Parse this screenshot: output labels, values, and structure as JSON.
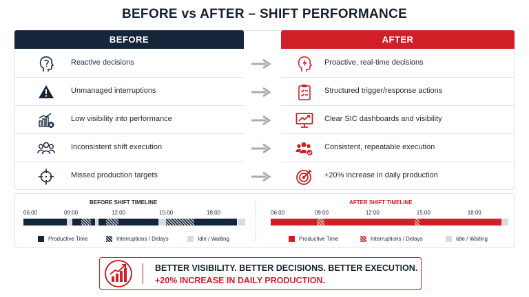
{
  "title": "BEFORE vs AFTER – SHIFT PERFORMANCE",
  "colors": {
    "navy": "#16263a",
    "red": "#d11f27",
    "idle": "#d9dbde",
    "arrow": "#a9adb3"
  },
  "columns": {
    "before": "BEFORE",
    "after": "AFTER"
  },
  "rows": [
    {
      "before_icon": "head-question-icon",
      "before": "Reactive decisions",
      "after_icon": "head-lightning-icon",
      "after": "Proactive, real-time decisions"
    },
    {
      "before_icon": "warning-triangle-icon",
      "before": "Unmanaged interruptions",
      "after_icon": "clipboard-checklist-icon",
      "after": "Structured trigger/response actions"
    },
    {
      "before_icon": "bar-chart-x-icon",
      "before": "Low visibility into performance",
      "after_icon": "monitor-chart-icon",
      "after": "Clear SIC dashboards and visibility"
    },
    {
      "before_icon": "team-outline-icon",
      "before": "Inconsistent shift execution",
      "after_icon": "team-check-icon",
      "after": "Consistent, repeatable execution"
    },
    {
      "before_icon": "crosshair-icon",
      "before": "Missed production targets",
      "after_icon": "target-arrow-icon",
      "after": "+20% increase in daily production"
    }
  ],
  "timelines": {
    "before": {
      "title": "BEFORE SHIFT TIMELINE",
      "ticks": [
        "06:00",
        "09:00",
        "12:00",
        "15:00",
        "18:00"
      ],
      "segments": [
        {
          "state": "productive",
          "start": 6.0,
          "end": 8.75
        },
        {
          "state": "idle",
          "start": 8.75,
          "end": 9.1
        },
        {
          "state": "productive",
          "start": 9.1,
          "end": 9.65
        },
        {
          "state": "interruption",
          "start": 9.65,
          "end": 10.25
        },
        {
          "state": "productive",
          "start": 10.25,
          "end": 10.5
        },
        {
          "state": "idle",
          "start": 10.5,
          "end": 10.75
        },
        {
          "state": "productive",
          "start": 10.75,
          "end": 11.2
        },
        {
          "state": "interruption",
          "start": 11.2,
          "end": 12.0
        },
        {
          "state": "productive",
          "start": 12.0,
          "end": 14.5
        },
        {
          "state": "idle",
          "start": 14.5,
          "end": 15.0
        },
        {
          "state": "interruption",
          "start": 15.0,
          "end": 16.8
        },
        {
          "state": "productive",
          "start": 16.8,
          "end": 19.5
        },
        {
          "state": "idle",
          "start": 19.5,
          "end": 20.0
        }
      ]
    },
    "after": {
      "title": "AFTER SHIFT TIMELINE",
      "ticks": [
        "06:00",
        "09:00",
        "12:00",
        "15:00",
        "18:00"
      ],
      "segments": [
        {
          "state": "productive",
          "start": 6.0,
          "end": 8.7
        },
        {
          "state": "interruption",
          "start": 8.7,
          "end": 9.15
        },
        {
          "state": "productive",
          "start": 9.15,
          "end": 14.5
        },
        {
          "state": "interruption",
          "start": 14.5,
          "end": 14.75
        },
        {
          "state": "productive",
          "start": 14.75,
          "end": 19.6
        },
        {
          "state": "idle",
          "start": 19.6,
          "end": 20.0
        }
      ]
    }
  },
  "legend": {
    "before": [
      "Productive Time",
      "Interruptions / Delays",
      "Idle / Waiting"
    ],
    "after": [
      "Productive Time",
      "Interruptions / Delays",
      "Idle / Waiting"
    ]
  },
  "banner": {
    "icon": "growth-chart-icon",
    "line1": "BETTER VISIBILITY. BETTER DECISIONS. BETTER EXECUTION.",
    "line2": "+20% INCREASE IN DAILY PRODUCTION."
  }
}
